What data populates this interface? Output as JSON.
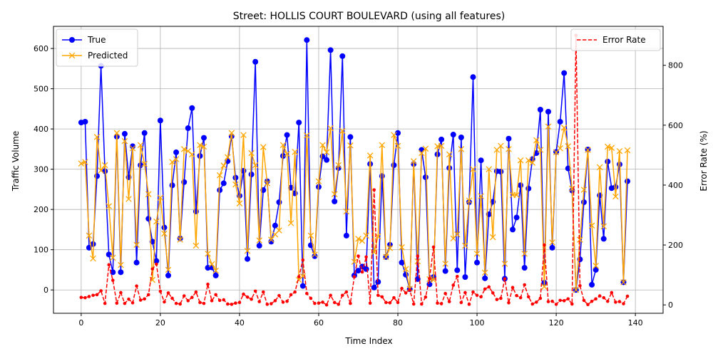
{
  "chart_data": {
    "type": "line",
    "title": "Street: HOLLIS COURT BOULEVARD (using all features)",
    "xlabel": "Time Index",
    "ylabel": "Traffic Volume",
    "y2label": "Error Rate (%)",
    "xlim": [
      -7,
      147
    ],
    "ylim": [
      -58,
      655
    ],
    "y2lim": [
      -28,
      930
    ],
    "xticks": [
      0,
      20,
      40,
      60,
      80,
      100,
      120,
      140
    ],
    "yticks": [
      0,
      100,
      200,
      300,
      400,
      500,
      600
    ],
    "y2ticks": [
      0,
      200,
      400,
      600,
      800
    ],
    "grid": true,
    "legend_left": "upper-left",
    "legend_right": "upper-right",
    "series": [
      {
        "name": "True",
        "axis": "left",
        "color": "#0000ff",
        "style": "solid",
        "marker": "circle",
        "values": [
          416,
          418,
          105,
          114,
          283,
          557,
          295,
          88,
          44,
          381,
          44,
          388,
          280,
          357,
          68,
          310,
          390,
          177,
          120,
          72,
          421,
          155,
          36,
          260,
          342,
          128,
          268,
          402,
          452,
          195,
          333,
          378,
          55,
          56,
          36,
          248,
          265,
          320,
          382,
          279,
          234,
          296,
          77,
          287,
          567,
          110,
          248,
          270,
          120,
          160,
          218,
          333,
          385,
          254,
          240,
          416,
          10,
          621,
          111,
          84,
          256,
          332,
          323,
          596,
          220,
          303,
          581,
          135,
          380,
          36,
          48,
          58,
          52,
          313,
          6,
          20,
          283,
          82,
          112,
          310,
          390,
          68,
          38,
          2,
          313,
          27,
          348,
          280,
          14,
          32,
          337,
          374,
          47,
          303,
          386,
          49,
          379,
          32,
          218,
          529,
          68,
          322,
          29,
          188,
          219,
          295,
          294,
          28,
          376,
          150,
          180,
          260,
          55,
          252,
          325,
          340,
          448,
          18,
          443,
          105,
          343,
          418,
          539,
          302,
          247,
          0,
          76,
          218,
          349,
          13,
          50,
          235,
          127,
          319,
          253,
          256,
          312,
          19,
          270
        ]
      },
      {
        "name": "Predicted",
        "axis": "left",
        "color": "#ffa500",
        "style": "solid",
        "marker": "x",
        "values": [
          314,
          318,
          135,
          78,
          380,
          297,
          310,
          208,
          80,
          390,
          62,
          370,
          226,
          352,
          112,
          360,
          313,
          238,
          25,
          170,
          229,
          140,
          50,
          318,
          325,
          125,
          350,
          345,
          337,
          110,
          360,
          356,
          90,
          64,
          48,
          285,
          309,
          330,
          390,
          262,
          215,
          385,
          97,
          340,
          310,
          123,
          355,
          265,
          125,
          138,
          148,
          360,
          338,
          166,
          343,
          25,
          34,
          384,
          135,
          88,
          270,
          360,
          342,
          402,
          238,
          310,
          395,
          195,
          359,
          70,
          127,
          122,
          135,
          334,
          94,
          133,
          360,
          82,
          104,
          385,
          358,
          106,
          52,
          3,
          320,
          71,
          340,
          351,
          27,
          25,
          357,
          358,
          65,
          337,
          128,
          138,
          350,
          110,
          222,
          300,
          90,
          233,
          43,
          300,
          131,
          348,
          358,
          65,
          350,
          236,
          236,
          322,
          90,
          322,
          316,
          372,
          348,
          8,
          406,
          118,
          342,
          352,
          403,
          357,
          252,
          0,
          125,
          249,
          348,
          160,
          60,
          305,
          158,
          356,
          353,
          232,
          345,
          19,
          347
        ]
      },
      {
        "name": "Error Rate",
        "axis": "right",
        "color": "#ff0000",
        "style": "dashed",
        "marker": "dot",
        "values": [
          25,
          24,
          28,
          32,
          34,
          47,
          5,
          134,
          82,
          6,
          41,
          5,
          19,
          7,
          63,
          16,
          20,
          34,
          120,
          136,
          45,
          10,
          40,
          22,
          5,
          3,
          30,
          14,
          25,
          43,
          8,
          5,
          69,
          14,
          34,
          15,
          17,
          3,
          2,
          6,
          8,
          36,
          26,
          19,
          46,
          11,
          43,
          2,
          4,
          14,
          31,
          9,
          12,
          34,
          43,
          94,
          150,
          38,
          22,
          5,
          6,
          9,
          0,
          32,
          8,
          2,
          32,
          43,
          5,
          94,
          163,
          110,
          160,
          6,
          384,
          32,
          27,
          8,
          7,
          24,
          8,
          55,
          40,
          50,
          3,
          163,
          3,
          26,
          88,
          193,
          6,
          4,
          38,
          11,
          66,
          95,
          8,
          41,
          2,
          43,
          32,
          27,
          53,
          60,
          40,
          18,
          22,
          87,
          7,
          58,
          31,
          24,
          67,
          27,
          3,
          9,
          22,
          200,
          11,
          12,
          2,
          15,
          14,
          20,
          3,
          900,
          64,
          15,
          1,
          12,
          20,
          30,
          24,
          12,
          41,
          9,
          11,
          4,
          29
        ]
      }
    ]
  }
}
